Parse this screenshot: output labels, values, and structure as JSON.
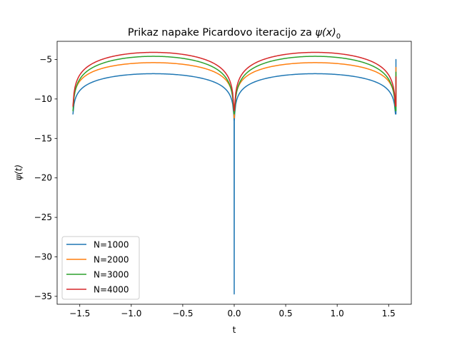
{
  "chart_data": {
    "type": "line",
    "title_text": "Prikaz napake Picardovo iteracijo za ",
    "title_math": "ψ(x)",
    "title_sub": "0",
    "xlabel": "t",
    "ylabel_math": "ψ(t)",
    "xlim": [
      -1.72,
      1.72
    ],
    "ylim": [
      -36.0,
      -2.7
    ],
    "xticks": [
      -1.5,
      -1.0,
      -0.5,
      0.0,
      0.5,
      1.0,
      1.5
    ],
    "xtick_labels": [
      "−1.5",
      "−1.0",
      "−0.5",
      "0.0",
      "0.5",
      "1.0",
      "1.5"
    ],
    "yticks": [
      -35,
      -30,
      -25,
      -20,
      -15,
      -10,
      -5
    ],
    "ytick_labels": [
      "−35",
      "−30",
      "−25",
      "−20",
      "−15",
      "−10",
      "−5"
    ],
    "grid": false,
    "legend_position": "lower-left",
    "domain": [
      -1.5708,
      1.5708
    ],
    "series": [
      {
        "name": "N=1000",
        "color": "#1f77b4",
        "peak": -6.8,
        "left_end": -11.9,
        "mid_end": -12.8,
        "spike": -34.7,
        "right_end": -11.9,
        "right_top": -5.0
      },
      {
        "name": "N=2000",
        "color": "#ff7f0e",
        "peak": -5.4,
        "left_end": -11.0,
        "mid_end": -12.4,
        "spike": -12.4,
        "right_end": -11.0,
        "right_top": -6.0
      },
      {
        "name": "N=3000",
        "color": "#2ca02c",
        "peak": -4.6,
        "left_end": -11.5,
        "mid_end": -11.9,
        "spike": -11.9,
        "right_end": -11.5,
        "right_top": -6.6
      },
      {
        "name": "N=4000",
        "color": "#d62728",
        "peak": -4.1,
        "left_end": -10.9,
        "mid_end": -11.5,
        "spike": -11.5,
        "right_end": -10.9,
        "right_top": -7.2
      }
    ]
  }
}
